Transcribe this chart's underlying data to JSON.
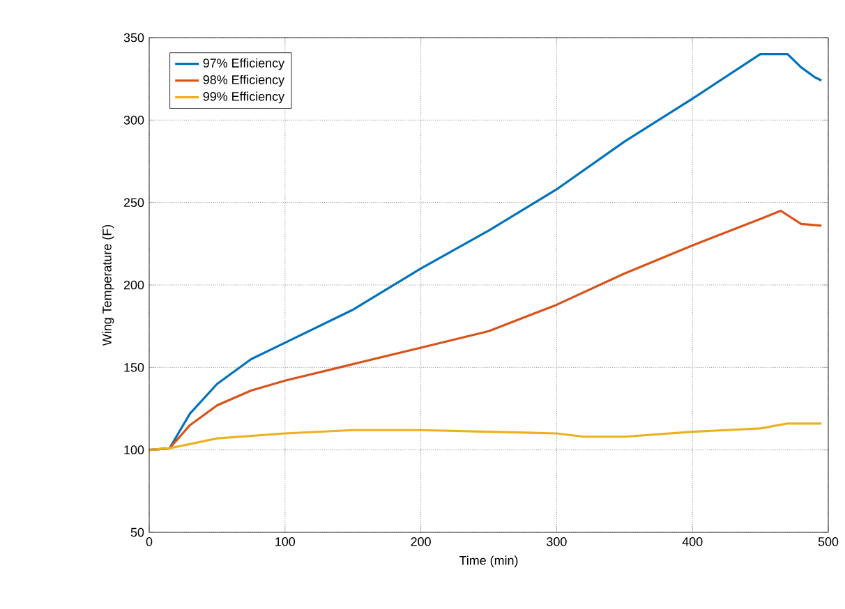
{
  "chart_data": {
    "type": "line",
    "xlabel": "Time (min)",
    "ylabel": "Wing Temperature (F)",
    "xlim": [
      0,
      500
    ],
    "ylim": [
      50,
      350
    ],
    "xticks": [
      0,
      100,
      200,
      300,
      400,
      500
    ],
    "yticks": [
      50,
      100,
      150,
      200,
      250,
      300,
      350
    ],
    "grid": true,
    "legend": "top left",
    "line_style": "solid",
    "marker": "none",
    "series": [
      {
        "name": "97% Efficiency",
        "color": "#0072bd",
        "x": [
          0,
          15,
          30,
          50,
          75,
          100,
          150,
          200,
          250,
          300,
          350,
          400,
          450,
          470,
          480,
          490,
          495
        ],
        "values": [
          100,
          101,
          122,
          140,
          155,
          165,
          185,
          210,
          233,
          258,
          287,
          313,
          340,
          340,
          332,
          326,
          324
        ]
      },
      {
        "name": "98% Efficiency",
        "color": "#d95319",
        "x": [
          0,
          15,
          30,
          50,
          75,
          100,
          150,
          200,
          250,
          300,
          350,
          400,
          450,
          465,
          480,
          495
        ],
        "values": [
          100,
          101,
          115,
          127,
          136,
          142,
          152,
          162,
          172,
          188,
          207,
          224,
          240,
          245,
          237,
          236
        ]
      },
      {
        "name": "99% Efficiency",
        "color": "#edb120",
        "x": [
          0,
          15,
          50,
          100,
          150,
          200,
          250,
          300,
          320,
          350,
          400,
          450,
          470,
          495
        ],
        "values": [
          100,
          101,
          107,
          110,
          112,
          112,
          111,
          110,
          108,
          108,
          111,
          113,
          116,
          116
        ]
      }
    ]
  }
}
